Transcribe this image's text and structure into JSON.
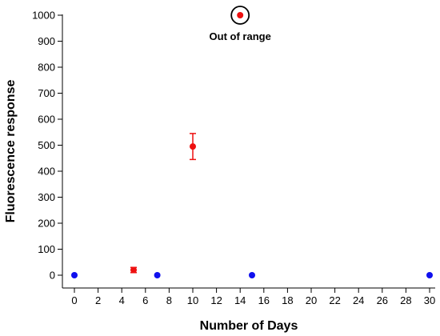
{
  "chart_data": {
    "type": "scatter",
    "title": "",
    "xlabel": "Number of Days",
    "ylabel": "Fluorescence response",
    "xlim": [
      0,
      30
    ],
    "ylim": [
      0,
      1000
    ],
    "xticks": [
      0,
      2,
      4,
      6,
      8,
      10,
      12,
      14,
      16,
      18,
      20,
      22,
      24,
      26,
      28,
      30
    ],
    "yticks": [
      0,
      100,
      200,
      300,
      400,
      500,
      600,
      700,
      800,
      900,
      1000
    ],
    "grid": false,
    "colors": {
      "blue": "#1010ee",
      "red": "#ee1010",
      "axis": "#000000"
    },
    "points": [
      {
        "x": 0,
        "y": 0,
        "color": "blue"
      },
      {
        "x": 5,
        "y": 20,
        "color": "red",
        "err": 10
      },
      {
        "x": 7,
        "y": 0,
        "color": "blue"
      },
      {
        "x": 10,
        "y": 495,
        "color": "red",
        "err": 50
      },
      {
        "x": 14,
        "y": 1000,
        "color": "red",
        "circled": true
      },
      {
        "x": 15,
        "y": 0,
        "color": "blue"
      },
      {
        "x": 30,
        "y": 0,
        "color": "blue"
      }
    ],
    "annotations": [
      {
        "text": "Out of range",
        "x": 14,
        "y": 1000
      }
    ]
  }
}
